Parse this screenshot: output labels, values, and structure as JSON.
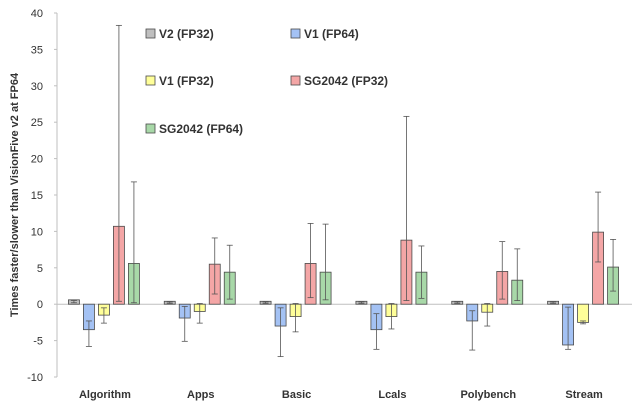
{
  "chart_data": {
    "type": "bar",
    "title": "",
    "xlabel": "",
    "ylabel": "Times faster/slower than VisionFive v2 at FP64",
    "ylim": [
      -10,
      40
    ],
    "yticks": [
      -10,
      -5,
      0,
      5,
      10,
      15,
      20,
      25,
      30,
      35,
      40
    ],
    "grid": false,
    "legend_position": "top",
    "categories": [
      "Algorithm",
      "Apps",
      "Basic",
      "Lcals",
      "Polybench",
      "Stream"
    ],
    "series": [
      {
        "name": "V2 (FP32)",
        "color": "#bfbfbf",
        "values": [
          0.6,
          0.4,
          0.4,
          0.4,
          0.4,
          0.4
        ],
        "err_low": [
          0.2,
          0.1,
          0.1,
          0.1,
          0.1,
          0.1
        ],
        "err_high": [
          0.5,
          0.3,
          0.3,
          0.3,
          0.3,
          0.3
        ]
      },
      {
        "name": "V1 (FP64)",
        "color": "#a4c2f4",
        "values": [
          -3.5,
          -1.9,
          -3.0,
          -3.5,
          -2.3,
          -5.6
        ],
        "err_low": [
          -5.8,
          -5.1,
          -7.2,
          -6.2,
          -6.3,
          -6.2
        ],
        "err_high": [
          -2.3,
          -0.3,
          -0.5,
          -1.3,
          -0.9,
          -0.4
        ]
      },
      {
        "name": "V1 (FP32)",
        "color": "#ffff99",
        "values": [
          -1.5,
          -1.0,
          -1.7,
          -1.7,
          -1.1,
          -2.5
        ],
        "err_low": [
          -2.6,
          -2.6,
          -3.8,
          -3.4,
          -3.0,
          -2.7
        ],
        "err_high": [
          -0.5,
          0.1,
          0.1,
          0.1,
          0.1,
          -2.3
        ]
      },
      {
        "name": "SG2042 (FP32)",
        "color": "#f4a6a6",
        "values": [
          10.7,
          5.5,
          5.6,
          8.8,
          4.5,
          9.9
        ],
        "err_low": [
          0.4,
          1.4,
          0.9,
          0.5,
          0.7,
          5.8
        ],
        "err_high": [
          38.3,
          9.1,
          11.1,
          25.8,
          8.6,
          15.4
        ]
      },
      {
        "name": "SG2042 (FP64)",
        "color": "#a8d8a8",
        "values": [
          5.6,
          4.4,
          4.4,
          4.4,
          3.3,
          5.1
        ],
        "err_low": [
          0.2,
          0.7,
          0.6,
          0.8,
          0.5,
          1.8
        ],
        "err_high": [
          16.8,
          8.1,
          11.0,
          8.0,
          7.6,
          8.9
        ]
      }
    ]
  }
}
